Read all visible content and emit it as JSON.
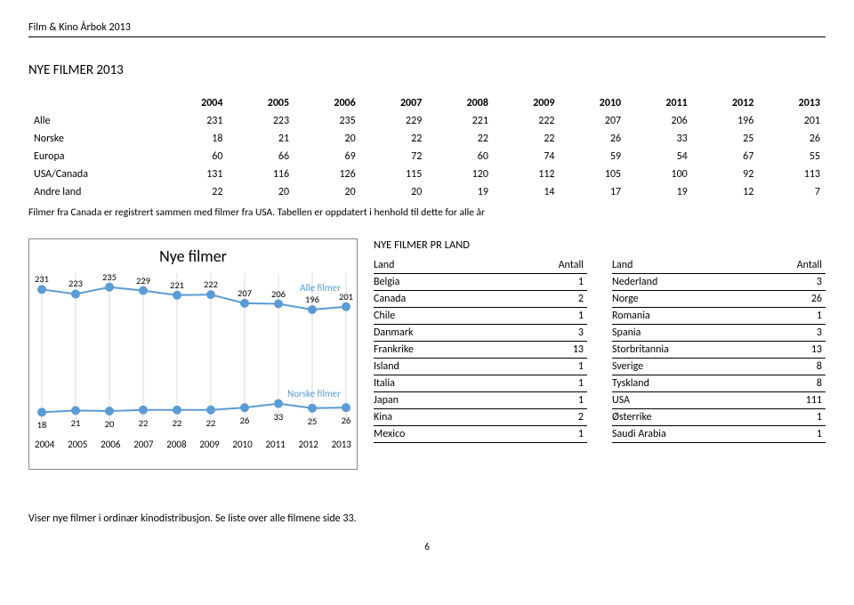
{
  "doc_header": "Film & Kino Årbok 2013",
  "section_title": "NYE FILMER 2013",
  "years": [
    "2004",
    "2005",
    "2006",
    "2007",
    "2008",
    "2009",
    "2010",
    "2011",
    "2012",
    "2013"
  ],
  "table_rows": [
    {
      "label": "Alle",
      "vals": [
        231,
        223,
        235,
        229,
        221,
        222,
        207,
        206,
        196,
        201
      ]
    },
    {
      "label": "Norske",
      "vals": [
        18,
        21,
        20,
        22,
        22,
        22,
        26,
        33,
        25,
        26
      ]
    },
    {
      "label": "Europa",
      "vals": [
        60,
        66,
        69,
        72,
        60,
        74,
        59,
        54,
        67,
        55
      ]
    },
    {
      "label": "USA/Canada",
      "vals": [
        131,
        116,
        126,
        115,
        120,
        112,
        105,
        100,
        92,
        113
      ]
    },
    {
      "label": "Andre land",
      "vals": [
        22,
        20,
        20,
        20,
        19,
        14,
        17,
        19,
        12,
        7
      ]
    }
  ],
  "footnote": "Filmer fra Canada er registrert sammen med filmer fra USA. Tabellen er oppdatert i henhold til dette for alle år",
  "chart": {
    "title": "Nye filmer",
    "series": [
      {
        "name": "Alle filmer",
        "color": "#5b9bd5",
        "vals": [
          231,
          223,
          235,
          229,
          221,
          222,
          207,
          206,
          196,
          201
        ]
      },
      {
        "name": "Norske filmer",
        "color": "#5b9bd5",
        "vals": [
          18,
          21,
          20,
          22,
          22,
          22,
          26,
          33,
          25,
          26
        ]
      }
    ],
    "ylim": [
      0,
      250
    ],
    "marker_size": 5,
    "line_width": 2,
    "label_fontsize": 11,
    "grid_color": "#bfbfbf",
    "x_labels": [
      "2004",
      "2005",
      "2006",
      "2007",
      "2008",
      "2009",
      "2010",
      "2011",
      "2012",
      "2013"
    ]
  },
  "prland": {
    "title": "NYE FILMER PR LAND",
    "col_headers": [
      "Land",
      "Antall"
    ],
    "left": [
      {
        "land": "Belgia",
        "antall": 1
      },
      {
        "land": "Canada",
        "antall": 2
      },
      {
        "land": "Chile",
        "antall": 1
      },
      {
        "land": "Danmark",
        "antall": 3
      },
      {
        "land": "Frankrike",
        "antall": 13
      },
      {
        "land": "Island",
        "antall": 1
      },
      {
        "land": "Italia",
        "antall": 1
      },
      {
        "land": "Japan",
        "antall": 1
      },
      {
        "land": "Kina",
        "antall": 2
      },
      {
        "land": "Mexico",
        "antall": 1
      }
    ],
    "right": [
      {
        "land": "Nederland",
        "antall": 3
      },
      {
        "land": "Norge",
        "antall": 26
      },
      {
        "land": "Romania",
        "antall": 1
      },
      {
        "land": "Spania",
        "antall": 3
      },
      {
        "land": "Storbritannia",
        "antall": 13
      },
      {
        "land": "Sverige",
        "antall": 8
      },
      {
        "land": "Tyskland",
        "antall": 8
      },
      {
        "land": "USA",
        "antall": 111
      },
      {
        "land": "Østerrike",
        "antall": 1
      },
      {
        "land": "Saudi Arabia",
        "antall": 1
      }
    ]
  },
  "bottom_note": "Viser nye filmer i ordinær kinodistribusjon. Se liste over alle filmene side 33.",
  "page_number": "6"
}
